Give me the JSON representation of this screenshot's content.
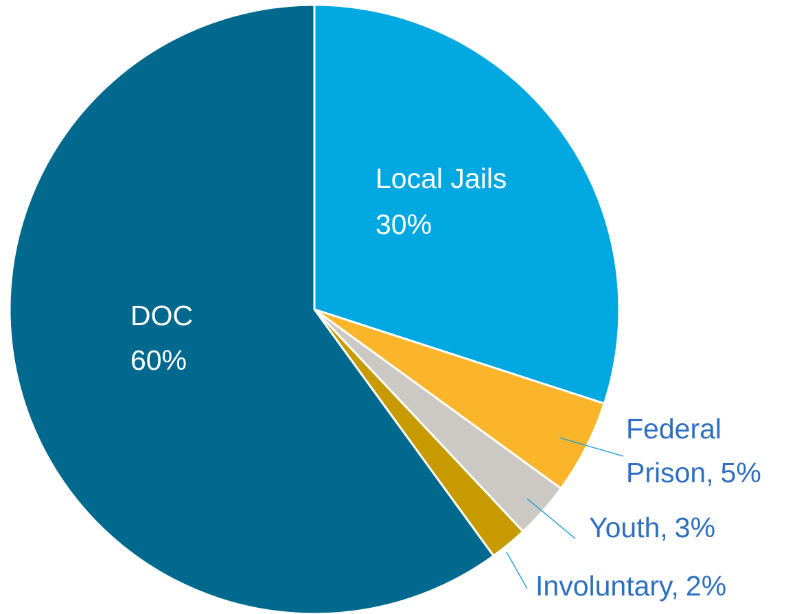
{
  "chart_data": {
    "type": "pie",
    "categories": [
      "Local Jails",
      "Federal Prison",
      "Youth",
      "Involuntary",
      "DOC"
    ],
    "values": [
      30,
      5,
      3,
      2,
      60
    ],
    "value_labels": [
      "30%",
      "5%",
      "3%",
      "2%",
      "60%"
    ],
    "label_separator": ",",
    "colors": [
      "#00a8e1",
      "#fbb52a",
      "#ccc9c4",
      "#c79a00",
      "#00698d"
    ]
  }
}
